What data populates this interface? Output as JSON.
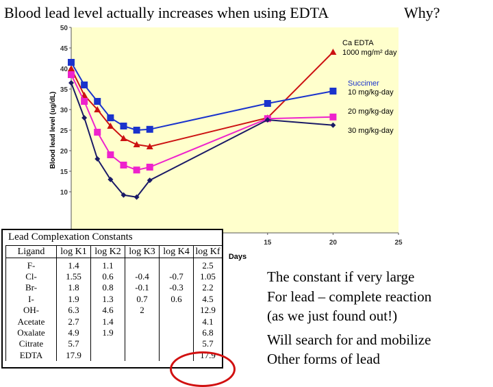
{
  "slide": {
    "title": "Blood lead level actually increases when using EDTA",
    "why": "Why?"
  },
  "chart_data": {
    "type": "line",
    "title": "",
    "xlabel": "Days",
    "ylabel": "Blood lead level (ug/dL)",
    "xlim": [
      0,
      25
    ],
    "ylim": [
      0,
      50
    ],
    "x_ticks": [
      15,
      20,
      25
    ],
    "y_ticks": [
      10,
      15,
      20,
      25,
      30,
      35,
      40,
      45,
      50
    ],
    "grid": false,
    "legend_placement": "right",
    "plot_background": "#ffffcc",
    "legend_headings": [
      "Ca EDTA",
      "Succimer"
    ],
    "series": [
      {
        "name": "1000 mg/m² day",
        "group": "Ca EDTA",
        "color": "#cc1111",
        "marker": "triangle",
        "x": [
          0,
          1,
          2,
          3,
          4,
          5,
          6,
          15,
          20
        ],
        "y": [
          40.0,
          33.5,
          30.0,
          26.0,
          23.0,
          21.5,
          21.0,
          28.0,
          44.0
        ]
      },
      {
        "name": "10 mg/kg-day",
        "group": "Succimer",
        "color": "#1a33cc",
        "marker": "square",
        "x": [
          0,
          1,
          2,
          3,
          4,
          5,
          6,
          15,
          20
        ],
        "y": [
          41.5,
          36.0,
          32.0,
          28.0,
          26.0,
          25.0,
          25.2,
          31.5,
          34.5
        ]
      },
      {
        "name": "20 mg/kg-day",
        "group": "Succimer",
        "color": "#ee22cc",
        "marker": "square",
        "x": [
          0,
          1,
          2,
          3,
          4,
          5,
          6,
          15,
          20
        ],
        "y": [
          38.5,
          32.0,
          24.5,
          19.0,
          16.5,
          15.3,
          16.0,
          27.8,
          28.2
        ]
      },
      {
        "name": "30 mg/kg-day",
        "group": "Succimer",
        "color": "#1a1a66",
        "marker": "diamond",
        "x": [
          0,
          1,
          2,
          3,
          4,
          5,
          6,
          15,
          20
        ],
        "y": [
          36.5,
          28.0,
          18.0,
          13.0,
          9.2,
          8.7,
          12.8,
          27.5,
          26.2
        ]
      }
    ]
  },
  "table": {
    "caption": "Lead Complexation Constants",
    "headers": [
      "Ligand",
      "log K1",
      "log K2",
      "log K3",
      "log K4",
      "log Kf"
    ],
    "rows": [
      [
        "F-",
        "1.4",
        "1.1",
        "",
        "",
        "2.5"
      ],
      [
        "Cl-",
        "1.55",
        "0.6",
        "-0.4",
        "-0.7",
        "1.05"
      ],
      [
        "Br-",
        "1.8",
        "0.8",
        "-0.1",
        "-0.3",
        "2.2"
      ],
      [
        "I-",
        "1.9",
        "1.3",
        "0.7",
        "0.6",
        "4.5"
      ],
      [
        "OH-",
        "6.3",
        "4.6",
        "2",
        "",
        "12.9"
      ],
      [
        "Acetate",
        "2.7",
        "1.4",
        "",
        "",
        "4.1"
      ],
      [
        "Oxalate",
        "4.9",
        "1.9",
        "",
        "",
        "6.8"
      ],
      [
        "Citrate",
        "5.7",
        "",
        "",
        "",
        "5.7"
      ],
      [
        "EDTA",
        "17.9",
        "",
        "",
        "",
        "17.9"
      ]
    ]
  },
  "notes": {
    "line1": "The constant if very large",
    "line2": "For lead – complete reaction",
    "line3": "(as we just found out!)",
    "line4": "Will search for and mobilize",
    "line5": "Other forms of lead"
  }
}
